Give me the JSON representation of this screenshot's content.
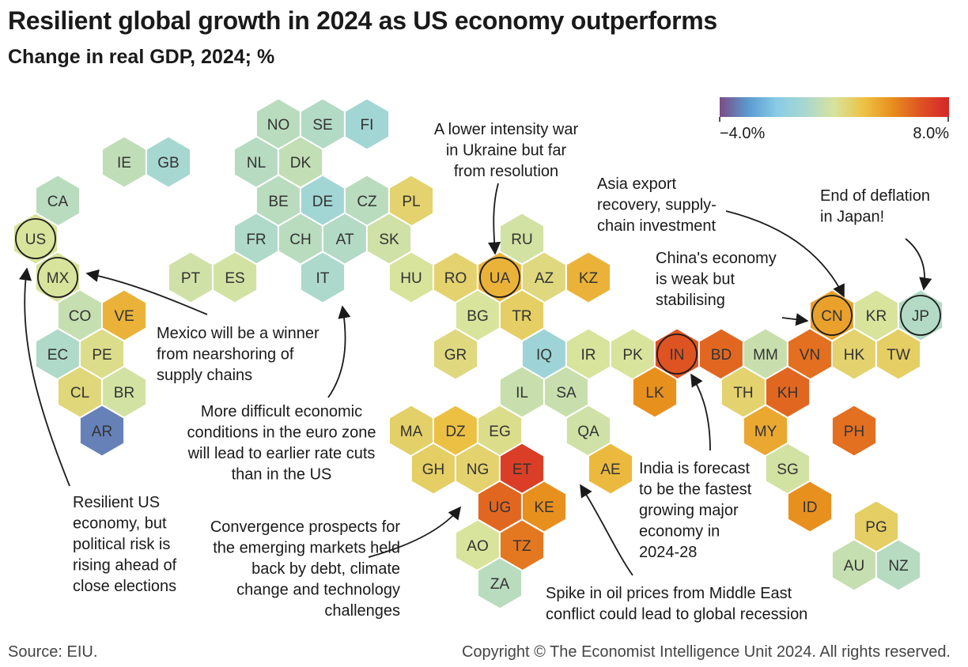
{
  "title": "Resilient global growth in 2024 as US economy outperforms",
  "subtitle": "Change in real GDP, 2024; %",
  "source": "Source: EIU.",
  "copyright": "Copyright © The Economist Intelligence Unit 2024. All rights reserved.",
  "legend": {
    "min_label": "−4.0%",
    "max_label": "8.0%",
    "min": -4.0,
    "max": 8.0,
    "colors": [
      "#7b4c86",
      "#5b9bd1",
      "#88cce6",
      "#a9d8cf",
      "#d8e39c",
      "#ecc346",
      "#e8901e",
      "#de5322",
      "#d5262a"
    ]
  },
  "chart_data": {
    "type": "hex-tile-map",
    "metric": "Change in real GDP, 2024; %",
    "color_scale": {
      "min": -4.0,
      "max": 8.0
    },
    "countries": [
      {
        "code": "NO",
        "growth": 1.0
      },
      {
        "code": "SE",
        "growth": 0.8
      },
      {
        "code": "FI",
        "growth": 0.2
      },
      {
        "code": "IE",
        "growth": 1.2
      },
      {
        "code": "GB",
        "growth": 0.4
      },
      {
        "code": "NL",
        "growth": 0.9
      },
      {
        "code": "DK",
        "growth": 1.3
      },
      {
        "code": "CA",
        "growth": 1.0
      },
      {
        "code": "BE",
        "growth": 1.0
      },
      {
        "code": "DE",
        "growth": 0.2
      },
      {
        "code": "CZ",
        "growth": 1.0
      },
      {
        "code": "PL",
        "growth": 2.8
      },
      {
        "code": "US",
        "growth": 2.0,
        "highlight": true
      },
      {
        "code": "FR",
        "growth": 0.7
      },
      {
        "code": "CH",
        "growth": 1.0
      },
      {
        "code": "AT",
        "growth": 0.8
      },
      {
        "code": "SK",
        "growth": 1.7
      },
      {
        "code": "RU",
        "growth": 1.8
      },
      {
        "code": "MX",
        "growth": 2.0,
        "highlight": true
      },
      {
        "code": "PT",
        "growth": 1.7
      },
      {
        "code": "ES",
        "growth": 1.8
      },
      {
        "code": "IT",
        "growth": 0.6
      },
      {
        "code": "HU",
        "growth": 2.0
      },
      {
        "code": "RO",
        "growth": 2.8
      },
      {
        "code": "UA",
        "growth": 4.0,
        "highlight": true
      },
      {
        "code": "AZ",
        "growth": 2.5
      },
      {
        "code": "KZ",
        "growth": 4.0
      },
      {
        "code": "CO",
        "growth": 1.4
      },
      {
        "code": "VE",
        "growth": 4.0
      },
      {
        "code": "BG",
        "growth": 2.0
      },
      {
        "code": "TR",
        "growth": 3.0
      },
      {
        "code": "CN",
        "growth": 4.5,
        "highlight": true
      },
      {
        "code": "KR",
        "growth": 2.0
      },
      {
        "code": "JP",
        "growth": 0.8,
        "highlight": true
      },
      {
        "code": "EC",
        "growth": 0.7
      },
      {
        "code": "PE",
        "growth": 2.3
      },
      {
        "code": "GR",
        "growth": 2.5
      },
      {
        "code": "IQ",
        "growth": 0.0
      },
      {
        "code": "IR",
        "growth": 2.0
      },
      {
        "code": "PK",
        "growth": 2.0
      },
      {
        "code": "IN",
        "growth": 6.5,
        "highlight": true
      },
      {
        "code": "BD",
        "growth": 6.0
      },
      {
        "code": "MM",
        "growth": 1.5
      },
      {
        "code": "VN",
        "growth": 5.8
      },
      {
        "code": "HK",
        "growth": 2.8
      },
      {
        "code": "TW",
        "growth": 3.0
      },
      {
        "code": "CL",
        "growth": 2.6
      },
      {
        "code": "BR",
        "growth": 1.8
      },
      {
        "code": "IL",
        "growth": 1.5
      },
      {
        "code": "SA",
        "growth": 1.5
      },
      {
        "code": "LK",
        "growth": 5.0
      },
      {
        "code": "TH",
        "growth": 2.8
      },
      {
        "code": "KH",
        "growth": 6.0
      },
      {
        "code": "AR",
        "growth": -3.0
      },
      {
        "code": "MA",
        "growth": 2.9
      },
      {
        "code": "DZ",
        "growth": 3.6
      },
      {
        "code": "EG",
        "growth": 2.3
      },
      {
        "code": "QA",
        "growth": 1.7
      },
      {
        "code": "MY",
        "growth": 4.3
      },
      {
        "code": "PH",
        "growth": 5.8
      },
      {
        "code": "GH",
        "growth": 3.0
      },
      {
        "code": "NG",
        "growth": 2.8
      },
      {
        "code": "ET",
        "growth": 7.2
      },
      {
        "code": "AE",
        "growth": 3.8
      },
      {
        "code": "SG",
        "growth": 1.8
      },
      {
        "code": "UG",
        "growth": 6.0
      },
      {
        "code": "KE",
        "growth": 5.0
      },
      {
        "code": "ID",
        "growth": 5.0
      },
      {
        "code": "PG",
        "growth": 3.0
      },
      {
        "code": "AO",
        "growth": 2.0
      },
      {
        "code": "TZ",
        "growth": 5.6
      },
      {
        "code": "AU",
        "growth": 1.4
      },
      {
        "code": "NZ",
        "growth": 0.9
      },
      {
        "code": "ZA",
        "growth": 1.0
      }
    ],
    "annotations": [
      {
        "id": "ukraine",
        "lines": [
          "A lower intensity war",
          "in Ukraine but far",
          "from resolution"
        ]
      },
      {
        "id": "asia-export",
        "lines": [
          "Asia export",
          "recovery, supply-",
          "chain investment"
        ]
      },
      {
        "id": "japan",
        "lines": [
          "End of deflation",
          "in Japan!"
        ]
      },
      {
        "id": "china",
        "lines": [
          "China's economy",
          "is weak but",
          "stabilising"
        ]
      },
      {
        "id": "mexico",
        "lines": [
          "Mexico will be a winner",
          "from nearshoring of",
          "supply chains"
        ]
      },
      {
        "id": "euro",
        "lines": [
          "More difficult economic",
          "conditions in the euro zone",
          "will lead to earlier rate cuts",
          "than in the US"
        ]
      },
      {
        "id": "us",
        "lines": [
          "Resilient US",
          "economy, but",
          "political risk is",
          "rising ahead of",
          "close elections"
        ]
      },
      {
        "id": "emerging",
        "lines": [
          "Convergence prospects for",
          "the emerging markets held",
          "back by debt, climate",
          "change and technology",
          "challenges"
        ]
      },
      {
        "id": "india",
        "lines": [
          "India is forecast",
          "to be the fastest",
          "growing major",
          "economy in",
          "2024-28"
        ]
      },
      {
        "id": "oil",
        "lines": [
          "Spike in oil prices from Middle East",
          "conflict could lead to global recession"
        ]
      }
    ]
  }
}
